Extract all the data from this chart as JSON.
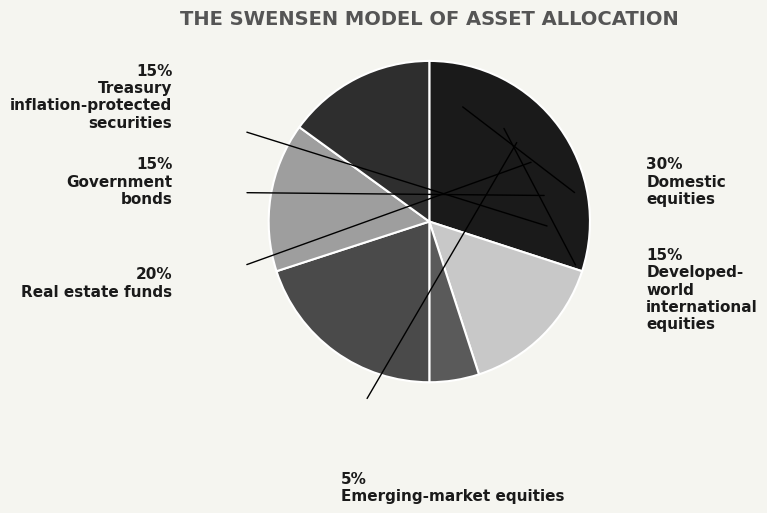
{
  "title": "THE SWENSEN MODEL OF ASSET ALLOCATION",
  "slices": [
    {
      "label": "30%\nDomestic\nequities",
      "value": 30,
      "color": "#1a1a1a",
      "pct": "30%",
      "name": "Domestic\nequities"
    },
    {
      "label": "15%\nDeveloped-\nworld\ninternational\nequities",
      "value": 15,
      "color": "#c8c8c8",
      "pct": "15%",
      "name": "Developed-\nworld\ninternational\nequities"
    },
    {
      "label": "5%\nEmerging-market equities",
      "value": 5,
      "color": "#5a5a5a",
      "pct": "5%",
      "name": "Emerging-market equities"
    },
    {
      "label": "20%\nReal estate funds",
      "value": 20,
      "color": "#4a4a4a",
      "pct": "20%",
      "name": "Real estate funds"
    },
    {
      "label": "15%\nGovernment\nbonds",
      "value": 15,
      "color": "#9e9e9e",
      "pct": "15%",
      "name": "Government\nbonds"
    },
    {
      "label": "15%\nTreasury\ninflation-protected\nsecurities",
      "value": 15,
      "color": "#2e2e2e",
      "pct": "15%",
      "name": "Treasury\ninflation-protected\nsecurities"
    }
  ],
  "background_color": "#f5f5f0",
  "title_color": "#555555",
  "title_fontsize": 14,
  "label_fontsize": 11,
  "line_color": "#000000"
}
